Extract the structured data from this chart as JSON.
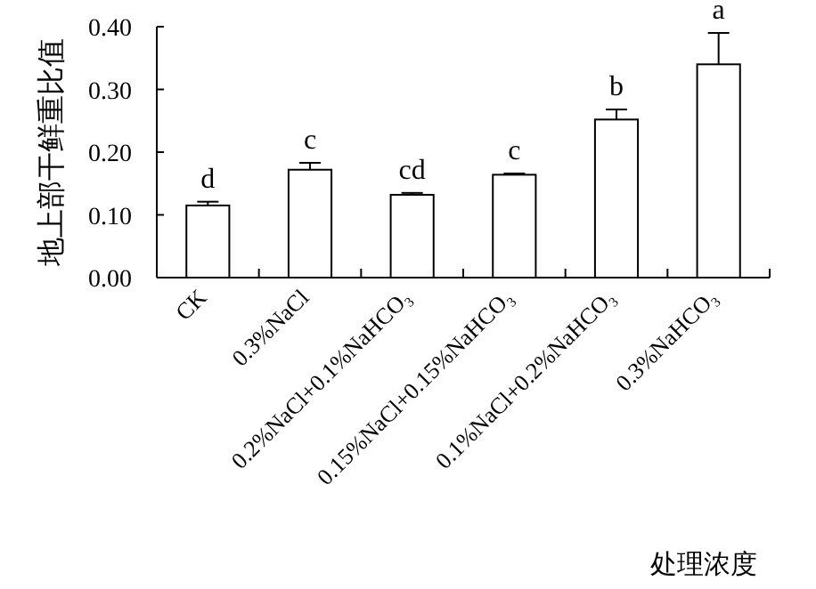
{
  "chart_data": {
    "type": "bar",
    "ylabel": "地上部干鲜重比值",
    "xlabel": "处理浓度",
    "categories": [
      "CK",
      "0.3%NaCl",
      "0.2%NaCl+0.1%NaHCO₃",
      "0.15%NaCl+0.15%NaHCO₃",
      "0.1%NaCl+0.2%NaHCO₃",
      "0.3%NaHCO₃"
    ],
    "values": [
      0.115,
      0.172,
      0.132,
      0.164,
      0.252,
      0.34
    ],
    "errors": [
      [
        0.115,
        0.121
      ],
      [
        0.172,
        0.183
      ],
      [
        0.132,
        0.135
      ],
      [
        0.164,
        0.166
      ],
      [
        0.252,
        0.268
      ],
      [
        0.34,
        0.39
      ]
    ],
    "color": "#ffffff",
    "ylim": [
      0,
      0.4
    ],
    "yticks": [
      {
        "value": 0,
        "label": "0.00"
      },
      {
        "value": 0.1,
        "label": "0.10"
      },
      {
        "value": 0.2,
        "label": "0.20"
      },
      {
        "value": 0.3,
        "label": "0.30"
      },
      {
        "value": 0.4,
        "label": "0.40"
      }
    ],
    "grid": false,
    "annotations": [
      {
        "text": "d",
        "x": "CK",
        "y": 0.121
      },
      {
        "text": "c",
        "x": "0.3%NaCl",
        "y": 0.183
      },
      {
        "text": "cd",
        "x": "0.2%NaCl+0.1%NaHCO₃",
        "y": 0.135
      },
      {
        "text": "c",
        "x": "0.15%NaCl+0.15%NaHCO₃",
        "y": 0.166
      },
      {
        "text": "b",
        "x": "0.1%NaCl+0.2%NaHCO₃",
        "y": 0.268
      },
      {
        "text": "a",
        "x": "0.3%NaHCO₃",
        "y": 0.39
      }
    ]
  }
}
